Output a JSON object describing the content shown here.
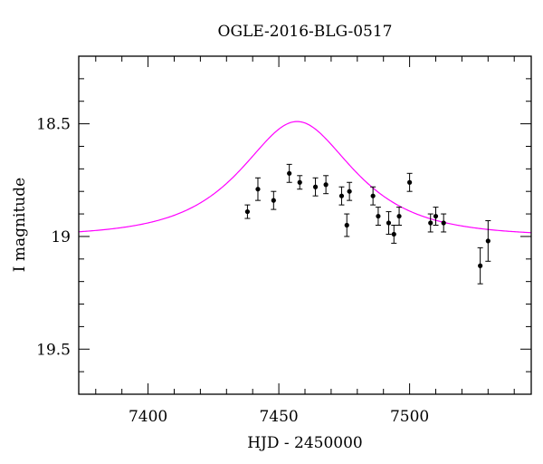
{
  "chart_data": {
    "type": "scatter",
    "title": "OGLE-2016-BLG-0517",
    "xlabel": "HJD - 2450000",
    "ylabel": "I magnitude",
    "xlim": [
      7373.5,
      7546.5
    ],
    "ylim": [
      19.7,
      18.2
    ],
    "y_inverted": true,
    "x_ticks": [
      7400,
      7450,
      7500
    ],
    "y_ticks": [
      18.5,
      19,
      19.5
    ],
    "x_tick_labels": [
      "7400",
      "7450",
      "7500"
    ],
    "y_tick_labels": [
      "18.5",
      "19",
      "19.5"
    ],
    "x_minor_step": 10,
    "y_minor_step": 0.1,
    "grid": false,
    "colors": {
      "model": "#ff00ff",
      "data": "#000000"
    },
    "model": {
      "name": "",
      "baseline": 19.0,
      "t0": 7457,
      "u0": 0.75,
      "tE": 30
    },
    "series": [
      {
        "name": "",
        "x": [
          7438,
          7442,
          7448,
          7454,
          7458,
          7464,
          7468,
          7474,
          7476,
          7477,
          7486,
          7488,
          7492,
          7494,
          7496,
          7500,
          7508,
          7510,
          7513,
          7527,
          7530
        ],
        "y": [
          18.89,
          18.79,
          18.84,
          18.72,
          18.76,
          18.78,
          18.77,
          18.82,
          18.95,
          18.8,
          18.82,
          18.91,
          18.94,
          18.99,
          18.91,
          18.76,
          18.94,
          18.91,
          18.94,
          19.13,
          19.02
        ],
        "err": [
          0.03,
          0.05,
          0.04,
          0.04,
          0.03,
          0.04,
          0.04,
          0.04,
          0.05,
          0.04,
          0.04,
          0.04,
          0.05,
          0.04,
          0.04,
          0.04,
          0.04,
          0.04,
          0.04,
          0.08,
          0.09
        ]
      }
    ]
  }
}
